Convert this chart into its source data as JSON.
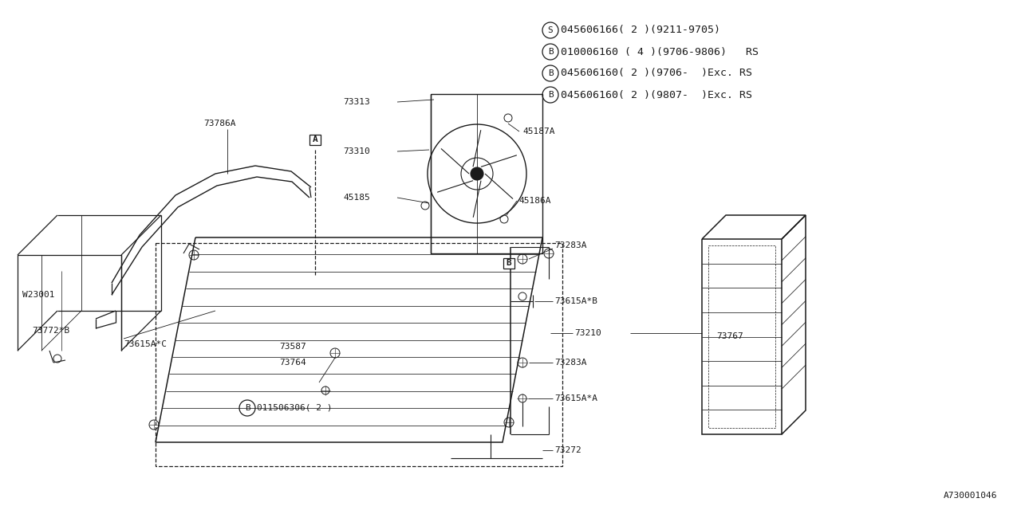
{
  "bg_color": "#ffffff",
  "line_color": "#1a1a1a",
  "legend_items": [
    {
      "symbol": "S",
      "text": "045606166( 2 )(9211-9705)"
    },
    {
      "symbol": "B",
      "text": "010006160 ( 4 )(9706-9806)   RS"
    },
    {
      "symbol": "B",
      "text": "045606160( 2 )(9706-  )Exc. RS"
    },
    {
      "symbol": "B",
      "text": "045606160( 2 )(9807-  )Exc. RS"
    }
  ],
  "diagram_id": "A730001046",
  "font_size": 9.0,
  "font_size_small": 8.0,
  "font_size_legend": 9.5
}
